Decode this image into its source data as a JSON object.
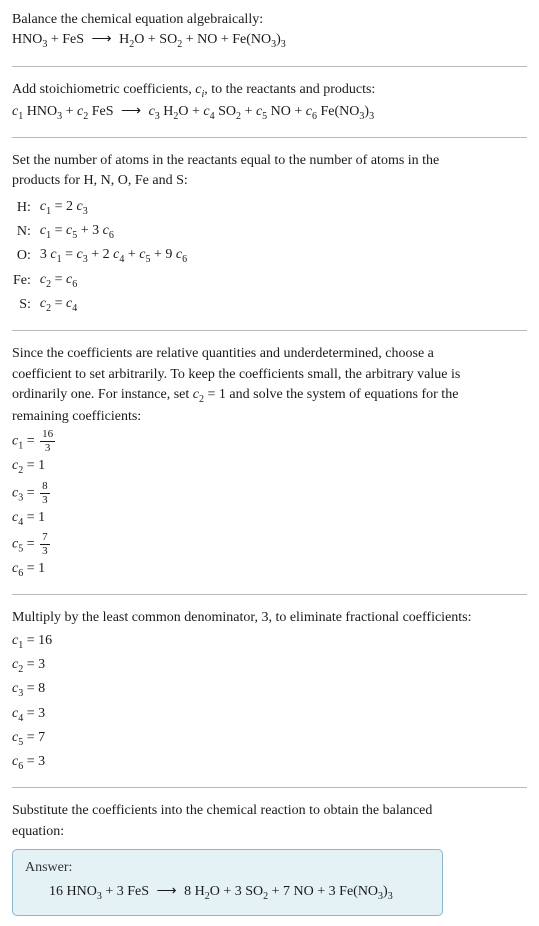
{
  "title1": "Balance the chemical equation algebraically:",
  "react1": {
    "HNO3": "HNO",
    "FeS": "FeS",
    "H2O": "H",
    "SO2": "SO",
    "NO": "NO",
    "FeNO33": "Fe(NO"
  },
  "arrow": "⟶",
  "stoich_text": "Add stoichiometric coefficients, ",
  "ci_end": ", to the reactants and products:",
  "atoms_text1": "Set the number of atoms in the reactants equal to the number of atoms in the",
  "atoms_text2": "products for H, N, O, Fe and S:",
  "rows": [
    {
      "el": "H:",
      "eq_lhs": "c",
      "eq_rhs": " = 2 c"
    },
    {
      "el": "N:",
      "eq_lhs": "c",
      "eq_rhs": " + 3 c"
    },
    {
      "el": "O:",
      "eq_lhs": "3 c",
      "eq_rhs": " + 2 c"
    },
    {
      "el": "Fe:",
      "eq_lhs": "c",
      "eq_rhs": " = c"
    },
    {
      "el": "S:",
      "eq_lhs": "c",
      "eq_rhs": " = c"
    }
  ],
  "para_choose1": "Since the coefficients are relative quantities and underdetermined, choose a",
  "para_choose2": "coefficient to set arbitrarily. To keep the coefficients small, the arbitrary value is",
  "para_choose3": "ordinarily one. For instance, set ",
  "para_choose3b": " = 1 and solve the system of equations for the",
  "para_choose4": "remaining coefficients:",
  "frac16": "16",
  "frac3": "3",
  "frac8": "8",
  "frac7": "7",
  "mult_text": "Multiply by the least common denominator, 3, to eliminate fractional coefficients:",
  "c1v": "16",
  "c2v": "3",
  "c3v": "8",
  "c4v": "3",
  "c5v": "7",
  "c6v": "3",
  "subst1": "Substitute the coefficients into the chemical reaction to obtain the balanced",
  "subst2": "equation:",
  "answer_label": "Answer:",
  "ans_pre": "16 HNO",
  "ans_fes": " + 3 FeS ",
  "ans_h2o": " 8 H",
  "ans_so2": "O + 3 SO",
  "ans_no": " + 7 NO + 3 Fe(NO",
  "c": "c",
  "eq": " = "
}
